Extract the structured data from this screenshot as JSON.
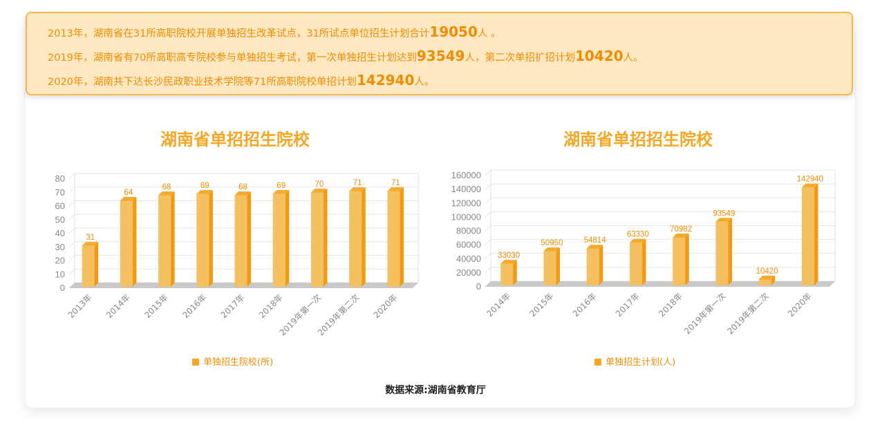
{
  "info": {
    "line1": {
      "pre": "2013年，湖南省在31所高职院校开展单独招生改革试点，31所试点单位招生计划合计",
      "num": "19050",
      "post": "人 。"
    },
    "line2": {
      "pre": "2019年，湖南省有70所高职高专院校参与单独招生考试，第一次单独招生计划达到",
      "num1": "93549",
      "mid": "人，第二次单招扩招计划",
      "num2": "10420",
      "post": "人。"
    },
    "line3": {
      "pre": "2020年，湖南共下达长沙民政职业技术学院等71所高职院校单招计划",
      "num": "142940",
      "post": "人。"
    }
  },
  "source": "数据来源:湖南省教育厅",
  "chart_data": [
    {
      "type": "bar",
      "title": "湖南省单招招生院校",
      "categories": [
        "2013年",
        "2014年",
        "2015年",
        "2016年",
        "2017年",
        "2018年",
        "2019年第一次",
        "2019年第二次",
        "2020年"
      ],
      "series": [
        {
          "name": "单独招生院校(所)",
          "values": [
            31,
            64,
            68,
            69,
            68,
            69,
            70,
            71,
            71
          ]
        }
      ],
      "ylim": [
        0,
        80
      ],
      "yticks": [
        0,
        10,
        20,
        30,
        40,
        50,
        60,
        70,
        80
      ],
      "grid": true,
      "legend_position": "bottom",
      "bar_color": "#f5c060",
      "bar_side_color": "#f29a12",
      "label_color": "#f08c00"
    },
    {
      "type": "bar",
      "title": "湖南省单招招生院校",
      "categories": [
        "2014年",
        "2015年",
        "2016年",
        "2017年",
        "2018年",
        "2019年第一次",
        "2019年第二次",
        "2020年"
      ],
      "series": [
        {
          "name": "单独招生计划(人)",
          "values": [
            33030,
            50950,
            54814,
            63330,
            70982,
            93549,
            10420,
            142940
          ]
        }
      ],
      "ylim": [
        0,
        160000
      ],
      "yticks": [
        0,
        20000,
        40000,
        60000,
        80000,
        100000,
        120000,
        140000,
        160000
      ],
      "grid": true,
      "legend_position": "bottom",
      "bar_color": "#f5c060",
      "bar_side_color": "#f29a12",
      "label_color": "#f08c00"
    }
  ]
}
